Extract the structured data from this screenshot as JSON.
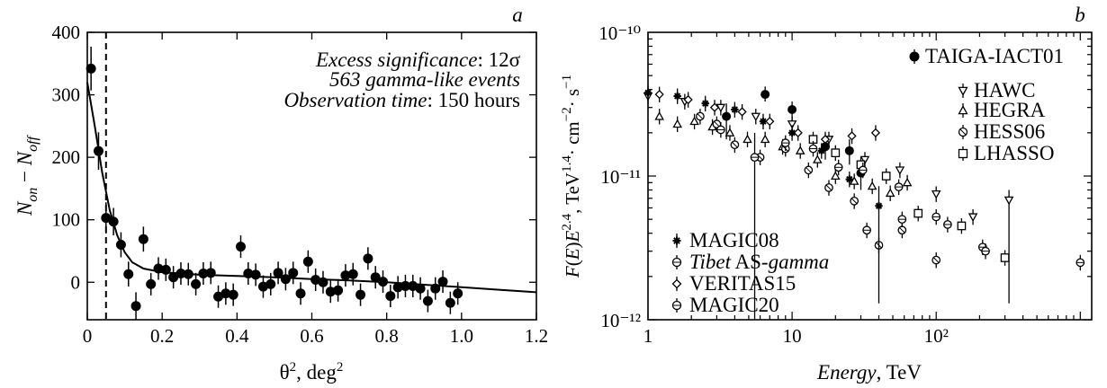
{
  "chart_data": [
    {
      "panel_label": "a",
      "type": "scatter",
      "xlabel": "θ², deg²",
      "ylabel": "N_on − N_off",
      "xlim": [
        0,
        1.2
      ],
      "ylim": [
        -60,
        400
      ],
      "xticks": [
        "0",
        "0.2",
        "0.4",
        "0.6",
        "0.8",
        "1.0",
        "1.2"
      ],
      "yticks": [
        "0",
        "100",
        "200",
        "300",
        "400"
      ],
      "annotation": {
        "line1_italic": "Excess significance",
        "line1_rest": ": 12σ",
        "line2": "563 gamma-like events",
        "line3_italic": "Observation time",
        "line3_rest": ": 150 hours"
      },
      "cut_theta2": 0.05,
      "points": [
        {
          "x": 0.01,
          "y": 342,
          "e": 35
        },
        {
          "x": 0.03,
          "y": 210,
          "e": 30
        },
        {
          "x": 0.05,
          "y": 103,
          "e": 25
        },
        {
          "x": 0.07,
          "y": 97,
          "e": 22
        },
        {
          "x": 0.09,
          "y": 60,
          "e": 20
        },
        {
          "x": 0.11,
          "y": 13,
          "e": 20
        },
        {
          "x": 0.13,
          "y": -38,
          "e": 22
        },
        {
          "x": 0.15,
          "y": 69,
          "e": 20
        },
        {
          "x": 0.17,
          "y": -3,
          "e": 18
        },
        {
          "x": 0.19,
          "y": 22,
          "e": 18
        },
        {
          "x": 0.21,
          "y": 20,
          "e": 18
        },
        {
          "x": 0.23,
          "y": 8,
          "e": 18
        },
        {
          "x": 0.25,
          "y": 14,
          "e": 18
        },
        {
          "x": 0.27,
          "y": 13,
          "e": 18
        },
        {
          "x": 0.29,
          "y": -3,
          "e": 18
        },
        {
          "x": 0.31,
          "y": 14,
          "e": 18
        },
        {
          "x": 0.33,
          "y": 15,
          "e": 18
        },
        {
          "x": 0.35,
          "y": -23,
          "e": 18
        },
        {
          "x": 0.37,
          "y": -18,
          "e": 18
        },
        {
          "x": 0.39,
          "y": -20,
          "e": 18
        },
        {
          "x": 0.41,
          "y": 57,
          "e": 18
        },
        {
          "x": 0.43,
          "y": 14,
          "e": 18
        },
        {
          "x": 0.45,
          "y": 12,
          "e": 18
        },
        {
          "x": 0.47,
          "y": -7,
          "e": 18
        },
        {
          "x": 0.49,
          "y": -3,
          "e": 18
        },
        {
          "x": 0.51,
          "y": 15,
          "e": 18
        },
        {
          "x": 0.53,
          "y": 5,
          "e": 18
        },
        {
          "x": 0.55,
          "y": 15,
          "e": 18
        },
        {
          "x": 0.57,
          "y": -18,
          "e": 18
        },
        {
          "x": 0.59,
          "y": 33,
          "e": 18
        },
        {
          "x": 0.61,
          "y": 4,
          "e": 18
        },
        {
          "x": 0.63,
          "y": 0,
          "e": 18
        },
        {
          "x": 0.65,
          "y": -15,
          "e": 18
        },
        {
          "x": 0.67,
          "y": -13,
          "e": 18
        },
        {
          "x": 0.69,
          "y": 11,
          "e": 18
        },
        {
          "x": 0.71,
          "y": 13,
          "e": 18
        },
        {
          "x": 0.73,
          "y": -20,
          "e": 18
        },
        {
          "x": 0.75,
          "y": 38,
          "e": 18
        },
        {
          "x": 0.77,
          "y": 8,
          "e": 18
        },
        {
          "x": 0.79,
          "y": 1,
          "e": 18
        },
        {
          "x": 0.81,
          "y": -22,
          "e": 18
        },
        {
          "x": 0.83,
          "y": -8,
          "e": 18
        },
        {
          "x": 0.85,
          "y": -6,
          "e": 18
        },
        {
          "x": 0.87,
          "y": -6,
          "e": 18
        },
        {
          "x": 0.89,
          "y": -10,
          "e": 18
        },
        {
          "x": 0.91,
          "y": -30,
          "e": 18
        },
        {
          "x": 0.93,
          "y": -10,
          "e": 18
        },
        {
          "x": 0.95,
          "y": 1,
          "e": 18
        },
        {
          "x": 0.97,
          "y": -33,
          "e": 18
        },
        {
          "x": 0.99,
          "y": -18,
          "e": 18
        }
      ],
      "fit_curve": [
        [
          0.0,
          320
        ],
        [
          0.02,
          250
        ],
        [
          0.04,
          175
        ],
        [
          0.06,
          115
        ],
        [
          0.08,
          75
        ],
        [
          0.1,
          48
        ],
        [
          0.12,
          32
        ],
        [
          0.15,
          22
        ],
        [
          0.2,
          16
        ],
        [
          0.3,
          12
        ],
        [
          0.4,
          10
        ],
        [
          0.5,
          8
        ],
        [
          0.6,
          5
        ],
        [
          0.7,
          3
        ],
        [
          0.8,
          0
        ],
        [
          0.9,
          -4
        ],
        [
          1.0,
          -8
        ],
        [
          1.1,
          -12
        ],
        [
          1.2,
          -16
        ]
      ]
    },
    {
      "panel_label": "b",
      "type": "scatter",
      "log_x": true,
      "log_y": true,
      "xlabel_italic": "Energy",
      "xlabel_rest": ", TeV",
      "ylabel": "F(E)E^2.4, TeV^1.4·cm^-2·s^-1",
      "xlim": [
        1,
        1200
      ],
      "ylim": [
        1e-12,
        1e-10
      ],
      "xticks": [
        {
          "value": 1,
          "label": "1"
        },
        {
          "value": 10,
          "label": "10"
        },
        {
          "value": 100,
          "label": "10²"
        }
      ],
      "yticks": [
        {
          "value": 1e-12,
          "label": "10⁻¹²"
        },
        {
          "value": 1e-11,
          "label": "10⁻¹¹"
        },
        {
          "value": 1e-10,
          "label": "10⁻¹⁰"
        }
      ],
      "legend": {
        "top_right": [
          "TAIGA-IACT01",
          "HAWC",
          "HEGRA",
          "HESS06",
          "LHASSO"
        ],
        "bottom_left": [
          "MAGIC08",
          "Tibet AS-gamma",
          "VERITAS15",
          "MAGIC20"
        ]
      },
      "series": [
        {
          "name": "TAIGA-IACT01",
          "marker": "filled-circle",
          "points": [
            {
              "x": 3.5,
              "y": 2.6e-11,
              "lo": 1.8e-11,
              "hi": 3.2e-11
            },
            {
              "x": 6.5,
              "y": 3.7e-11,
              "lo": 3.3e-11,
              "hi": 4.2e-11
            },
            {
              "x": 10,
              "y": 2.9e-11,
              "lo": 2.4e-11,
              "hi": 3.3e-11
            },
            {
              "x": 17,
              "y": 1.6e-11,
              "lo": 1.3e-11,
              "hi": 1.9e-11
            },
            {
              "x": 25,
              "y": 1.5e-11,
              "lo": 1.2e-11,
              "hi": 1.8e-11
            },
            {
              "x": 30,
              "y": 1.05e-11,
              "lo": 8e-12,
              "hi": 1.3e-11
            }
          ]
        },
        {
          "name": "HAWC",
          "marker": "down-triangle",
          "points": [
            {
              "x": 1,
              "y": 3.6e-11
            },
            {
              "x": 1.8,
              "y": 3.3e-11
            },
            {
              "x": 3.2,
              "y": 3e-11
            },
            {
              "x": 5.6,
              "y": 2.6e-11
            },
            {
              "x": 10,
              "y": 2.3e-11
            },
            {
              "x": 18,
              "y": 1.8e-11
            },
            {
              "x": 32,
              "y": 1.3e-11
            },
            {
              "x": 56,
              "y": 1.1e-11
            },
            {
              "x": 100,
              "y": 7.5e-12
            },
            {
              "x": 180,
              "y": 5.2e-12
            },
            {
              "x": 320,
              "y": 6.8e-12,
              "lo": 1.3e-12,
              "hi": 8e-12
            }
          ]
        },
        {
          "name": "HEGRA",
          "marker": "up-triangle",
          "points": [
            {
              "x": 1.2,
              "y": 2.6e-11
            },
            {
              "x": 1.6,
              "y": 2.3e-11
            },
            {
              "x": 2.1,
              "y": 2.4e-11
            },
            {
              "x": 2.8,
              "y": 2.2e-11
            },
            {
              "x": 3.7,
              "y": 2e-11
            },
            {
              "x": 4.9,
              "y": 1.8e-11
            },
            {
              "x": 6.5,
              "y": 1.8e-11
            },
            {
              "x": 8.6,
              "y": 1.6e-11
            },
            {
              "x": 11.4,
              "y": 1.5e-11
            },
            {
              "x": 15,
              "y": 1.3e-11
            },
            {
              "x": 20,
              "y": 1e-11
            },
            {
              "x": 27,
              "y": 9.2e-12
            },
            {
              "x": 36,
              "y": 8.5e-12
            },
            {
              "x": 48,
              "y": 7.6e-12
            },
            {
              "x": 63,
              "y": 9e-12
            }
          ]
        },
        {
          "name": "HESS06",
          "marker": "circle-x",
          "points": [
            {
              "x": 2.3,
              "y": 2.6e-11
            },
            {
              "x": 3.0,
              "y": 2.3e-11
            },
            {
              "x": 4.0,
              "y": 1.65e-11
            },
            {
              "x": 6.0,
              "y": 1.35e-11
            },
            {
              "x": 9.0,
              "y": 1.55e-11
            },
            {
              "x": 13,
              "y": 1.1e-11
            },
            {
              "x": 18,
              "y": 8.3e-12
            },
            {
              "x": 27,
              "y": 6.7e-12
            },
            {
              "x": 40,
              "y": 3.3e-12
            },
            {
              "x": 58,
              "y": 4.2e-12
            },
            {
              "x": 100,
              "y": 2.6e-12
            }
          ]
        },
        {
          "name": "LHASSO",
          "marker": "open-square",
          "points": [
            {
              "x": 14,
              "y": 1.8e-11
            },
            {
              "x": 20,
              "y": 1.45e-11
            },
            {
              "x": 30,
              "y": 1.2e-11
            },
            {
              "x": 45,
              "y": 1e-11
            },
            {
              "x": 75,
              "y": 5.5e-12
            },
            {
              "x": 150,
              "y": 4.5e-12
            },
            {
              "x": 300,
              "y": 2.7e-12
            }
          ]
        },
        {
          "name": "MAGIC08",
          "marker": "star",
          "points": [
            {
              "x": 1.0,
              "y": 3.8e-11
            },
            {
              "x": 1.6,
              "y": 3.6e-11
            },
            {
              "x": 2.5,
              "y": 3.2e-11
            },
            {
              "x": 4.0,
              "y": 2.9e-11
            },
            {
              "x": 6.3,
              "y": 2.4e-11
            },
            {
              "x": 10,
              "y": 2e-11
            },
            {
              "x": 16,
              "y": 1.5e-11
            },
            {
              "x": 25,
              "y": 9.5e-12
            },
            {
              "x": 40,
              "y": 6.2e-12,
              "lo": 1.3e-12,
              "hi": 8.5e-12
            }
          ]
        },
        {
          "name": "Tibet AS-gamma",
          "marker": "circle-bar",
          "points": [
            {
              "x": 31,
              "y": 1.1e-11
            },
            {
              "x": 55,
              "y": 8.4e-12
            },
            {
              "x": 100,
              "y": 5.2e-12
            },
            {
              "x": 210,
              "y": 3.2e-12
            },
            {
              "x": 1000,
              "y": 2.5e-12
            }
          ]
        },
        {
          "name": "VERITAS15",
          "marker": "diamond",
          "points": [
            {
              "x": 1.2,
              "y": 3.7e-11
            },
            {
              "x": 1.9,
              "y": 3.4e-11
            },
            {
              "x": 2.9,
              "y": 3e-11
            },
            {
              "x": 4.5,
              "y": 2.8e-11
            },
            {
              "x": 7.0,
              "y": 2.4e-11
            },
            {
              "x": 11,
              "y": 2e-11
            },
            {
              "x": 17,
              "y": 1.8e-11
            },
            {
              "x": 26,
              "y": 1.9e-11
            },
            {
              "x": 38,
              "y": 2e-11
            }
          ]
        },
        {
          "name": "MAGIC20",
          "marker": "circle-bar",
          "points": [
            {
              "x": 3.2,
              "y": 2.1e-11
            },
            {
              "x": 5.5,
              "y": 1.35e-11,
              "lo": 1e-12,
              "hi": 2e-11
            },
            {
              "x": 9.0,
              "y": 1.7e-11
            },
            {
              "x": 14,
              "y": 1.55e-11
            },
            {
              "x": 21,
              "y": 1.15e-11
            },
            {
              "x": 33,
              "y": 4.2e-12
            },
            {
              "x": 58,
              "y": 5e-12
            },
            {
              "x": 120,
              "y": 4.6e-12
            },
            {
              "x": 220,
              "y": 3e-12
            }
          ]
        }
      ]
    }
  ]
}
